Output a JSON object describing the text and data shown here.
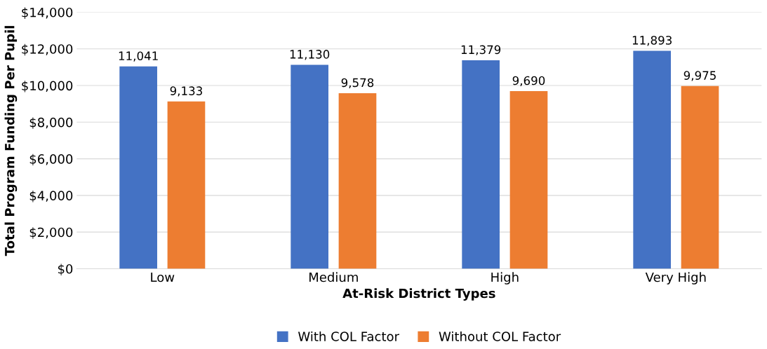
{
  "chart_data": {
    "type": "bar",
    "xlabel": "At-Risk District Types",
    "ylabel": "Total Program Funding Per Pupil",
    "categories": [
      "Low",
      "Medium",
      "High",
      "Very High"
    ],
    "series": [
      {
        "name": "With COL Factor",
        "color": "#4472c4",
        "values": [
          11041,
          11130,
          11379,
          11893
        ],
        "value_labels": [
          "11,041",
          "11,130",
          "11,379",
          "11,893"
        ]
      },
      {
        "name": "Without COL Factor",
        "color": "#ed7d31",
        "values": [
          9133,
          9578,
          9690,
          9975
        ],
        "value_labels": [
          "9,133",
          "9,578",
          "9,690",
          "9,975"
        ]
      }
    ],
    "ylim": [
      0,
      14000
    ],
    "yticks": [
      {
        "value": 0,
        "label": "$0"
      },
      {
        "value": 2000,
        "label": "$2,000"
      },
      {
        "value": 4000,
        "label": "$4,000"
      },
      {
        "value": 6000,
        "label": "$6,000"
      },
      {
        "value": 8000,
        "label": "$8,000"
      },
      {
        "value": 10000,
        "label": "$10,000"
      },
      {
        "value": 12000,
        "label": "$12,000"
      },
      {
        "value": 14000,
        "label": "$14,000"
      }
    ],
    "grid": "y",
    "legend": "bottom"
  }
}
